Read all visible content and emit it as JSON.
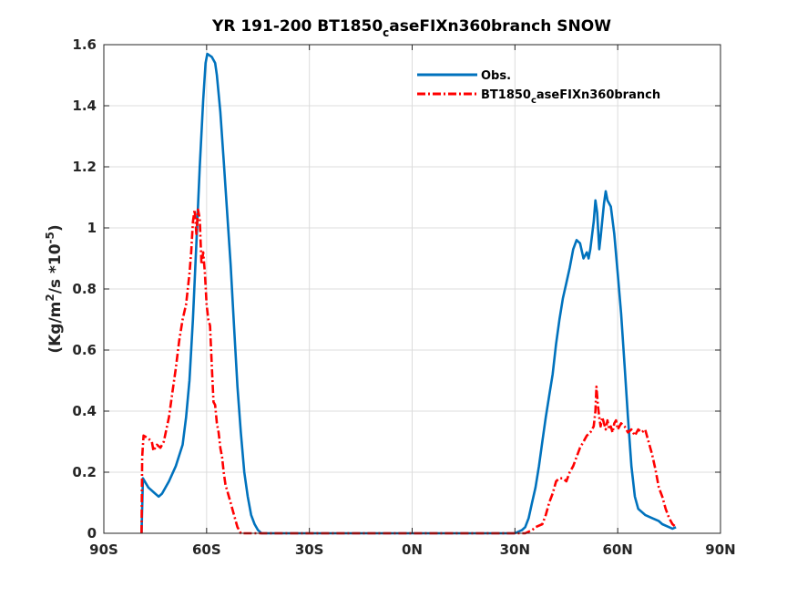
{
  "chart_data": {
    "type": "line",
    "title_main": "YR 191-200 BT1850",
    "title_sub": "c",
    "title_rest": "aseFIXn360branch SNOW",
    "ylabel_pre": "(Kg/m",
    "ylabel_sup1": "2",
    "ylabel_mid": "/s *10",
    "ylabel_sup2": "-5",
    "ylabel_post": ")",
    "xlim": [
      -90,
      90
    ],
    "ylim": [
      0,
      1.6
    ],
    "xticks": [
      -90,
      -60,
      -30,
      0,
      30,
      60,
      90
    ],
    "xtick_labels": [
      "90S",
      "60S",
      "30S",
      "0N",
      "30N",
      "60N",
      "90N"
    ],
    "yticks": [
      0,
      0.2,
      0.4,
      0.6,
      0.8,
      1,
      1.2,
      1.4,
      1.6
    ],
    "ytick_labels": [
      "0",
      "0.2",
      "0.4",
      "0.6",
      "0.8",
      "1",
      "1.2",
      "1.4",
      "1.6"
    ],
    "grid": true,
    "legend_position": "top-right",
    "series": [
      {
        "name": "Obs.",
        "color": "#0072BD",
        "style": "solid",
        "points": [
          [
            -79,
            0.0
          ],
          [
            -78.6,
            0.18
          ],
          [
            -77,
            0.15
          ],
          [
            -75,
            0.13
          ],
          [
            -74,
            0.12
          ],
          [
            -73,
            0.13
          ],
          [
            -71,
            0.17
          ],
          [
            -69,
            0.22
          ],
          [
            -67,
            0.29
          ],
          [
            -66,
            0.38
          ],
          [
            -65,
            0.5
          ],
          [
            -64,
            0.7
          ],
          [
            -63,
            0.95
          ],
          [
            -62,
            1.2
          ],
          [
            -61,
            1.42
          ],
          [
            -60.3,
            1.54
          ],
          [
            -59.8,
            1.57
          ],
          [
            -58.5,
            1.56
          ],
          [
            -57.5,
            1.54
          ],
          [
            -57,
            1.5
          ],
          [
            -56,
            1.38
          ],
          [
            -55,
            1.22
          ],
          [
            -54,
            1.05
          ],
          [
            -53,
            0.88
          ],
          [
            -52,
            0.68
          ],
          [
            -51,
            0.48
          ],
          [
            -50,
            0.33
          ],
          [
            -49,
            0.2
          ],
          [
            -48,
            0.12
          ],
          [
            -47,
            0.06
          ],
          [
            -46,
            0.03
          ],
          [
            -45,
            0.01
          ],
          [
            -44,
            0.0
          ],
          [
            -20,
            0.0
          ],
          [
            0,
            0.0
          ],
          [
            20,
            0.0
          ],
          [
            30,
            0.0
          ],
          [
            32,
            0.01
          ],
          [
            33,
            0.02
          ],
          [
            34,
            0.05
          ],
          [
            35,
            0.1
          ],
          [
            36,
            0.15
          ],
          [
            37,
            0.22
          ],
          [
            38,
            0.3
          ],
          [
            39,
            0.38
          ],
          [
            40,
            0.45
          ],
          [
            41,
            0.52
          ],
          [
            42,
            0.62
          ],
          [
            43,
            0.7
          ],
          [
            44,
            0.77
          ],
          [
            45,
            0.82
          ],
          [
            46,
            0.87
          ],
          [
            47,
            0.93
          ],
          [
            48,
            0.96
          ],
          [
            49,
            0.95
          ],
          [
            50,
            0.9
          ],
          [
            51,
            0.92
          ],
          [
            51.5,
            0.9
          ],
          [
            52,
            0.93
          ],
          [
            53,
            1.02
          ],
          [
            53.5,
            1.09
          ],
          [
            54,
            1.05
          ],
          [
            54.6,
            0.93
          ],
          [
            55,
            0.97
          ],
          [
            56,
            1.08
          ],
          [
            56.5,
            1.12
          ],
          [
            57,
            1.09
          ],
          [
            58,
            1.07
          ],
          [
            59,
            0.98
          ],
          [
            60,
            0.85
          ],
          [
            61,
            0.72
          ],
          [
            62,
            0.55
          ],
          [
            63,
            0.38
          ],
          [
            64,
            0.22
          ],
          [
            65,
            0.12
          ],
          [
            66,
            0.08
          ],
          [
            68,
            0.06
          ],
          [
            70,
            0.05
          ],
          [
            72,
            0.04
          ],
          [
            73,
            0.03
          ],
          [
            75,
            0.02
          ],
          [
            76,
            0.015
          ],
          [
            77,
            0.02
          ]
        ]
      },
      {
        "name": "BT1850caseFIXn360branch",
        "name_main": "BT1850",
        "name_sub": "c",
        "name_rest": "aseFIXn360branch",
        "color": "#FF0000",
        "style": "dash-dot",
        "points": [
          [
            -79,
            0.0
          ],
          [
            -78.8,
            0.25
          ],
          [
            -78.4,
            0.32
          ],
          [
            -77,
            0.31
          ],
          [
            -76,
            0.3
          ],
          [
            -75.5,
            0.27
          ],
          [
            -74.5,
            0.29
          ],
          [
            -73.5,
            0.28
          ],
          [
            -72.5,
            0.3
          ],
          [
            -71,
            0.38
          ],
          [
            -70,
            0.46
          ],
          [
            -69,
            0.54
          ],
          [
            -68,
            0.63
          ],
          [
            -67,
            0.7
          ],
          [
            -66,
            0.75
          ],
          [
            -65,
            0.85
          ],
          [
            -64.5,
            0.92
          ],
          [
            -64,
            1.02
          ],
          [
            -63.5,
            1.06
          ],
          [
            -63,
            0.98
          ],
          [
            -62.5,
            1.06
          ],
          [
            -62,
            1.03
          ],
          [
            -61.5,
            0.88
          ],
          [
            -61,
            0.92
          ],
          [
            -60.5,
            0.85
          ],
          [
            -60,
            0.75
          ],
          [
            -59.5,
            0.7
          ],
          [
            -59,
            0.68
          ],
          [
            -58.5,
            0.55
          ],
          [
            -58,
            0.43
          ],
          [
            -57.5,
            0.42
          ],
          [
            -57,
            0.36
          ],
          [
            -56.5,
            0.33
          ],
          [
            -56,
            0.28
          ],
          [
            -55.5,
            0.25
          ],
          [
            -55,
            0.2
          ],
          [
            -54.5,
            0.16
          ],
          [
            -54,
            0.14
          ],
          [
            -53,
            0.1
          ],
          [
            -52,
            0.06
          ],
          [
            -51,
            0.02
          ],
          [
            -50,
            0.0
          ],
          [
            -30,
            0.0
          ],
          [
            0,
            0.0
          ],
          [
            30,
            0.0
          ],
          [
            33,
            0.0
          ],
          [
            35,
            0.01
          ],
          [
            36,
            0.02
          ],
          [
            38,
            0.03
          ],
          [
            39,
            0.06
          ],
          [
            40,
            0.1
          ],
          [
            41,
            0.13
          ],
          [
            42,
            0.17
          ],
          [
            43,
            0.18
          ],
          [
            44,
            0.18
          ],
          [
            45,
            0.17
          ],
          [
            46,
            0.2
          ],
          [
            47,
            0.22
          ],
          [
            48,
            0.25
          ],
          [
            49,
            0.28
          ],
          [
            50,
            0.3
          ],
          [
            51,
            0.32
          ],
          [
            52,
            0.33
          ],
          [
            53,
            0.35
          ],
          [
            53.5,
            0.4
          ],
          [
            53.8,
            0.48
          ],
          [
            54.2,
            0.42
          ],
          [
            54.6,
            0.38
          ],
          [
            55,
            0.35
          ],
          [
            55.5,
            0.38
          ],
          [
            56,
            0.36
          ],
          [
            56.5,
            0.34
          ],
          [
            57,
            0.37
          ],
          [
            57.5,
            0.34
          ],
          [
            58,
            0.35
          ],
          [
            58.5,
            0.33
          ],
          [
            59,
            0.36
          ],
          [
            59.5,
            0.37
          ],
          [
            60,
            0.34
          ],
          [
            61,
            0.36
          ],
          [
            62,
            0.35
          ],
          [
            63,
            0.33
          ],
          [
            64,
            0.34
          ],
          [
            65,
            0.32
          ],
          [
            66,
            0.34
          ],
          [
            67,
            0.33
          ],
          [
            68,
            0.34
          ],
          [
            69,
            0.3
          ],
          [
            70,
            0.26
          ],
          [
            71,
            0.21
          ],
          [
            72,
            0.15
          ],
          [
            73,
            0.12
          ],
          [
            74,
            0.08
          ],
          [
            75,
            0.05
          ],
          [
            76,
            0.03
          ],
          [
            77,
            0.02
          ]
        ]
      }
    ]
  }
}
